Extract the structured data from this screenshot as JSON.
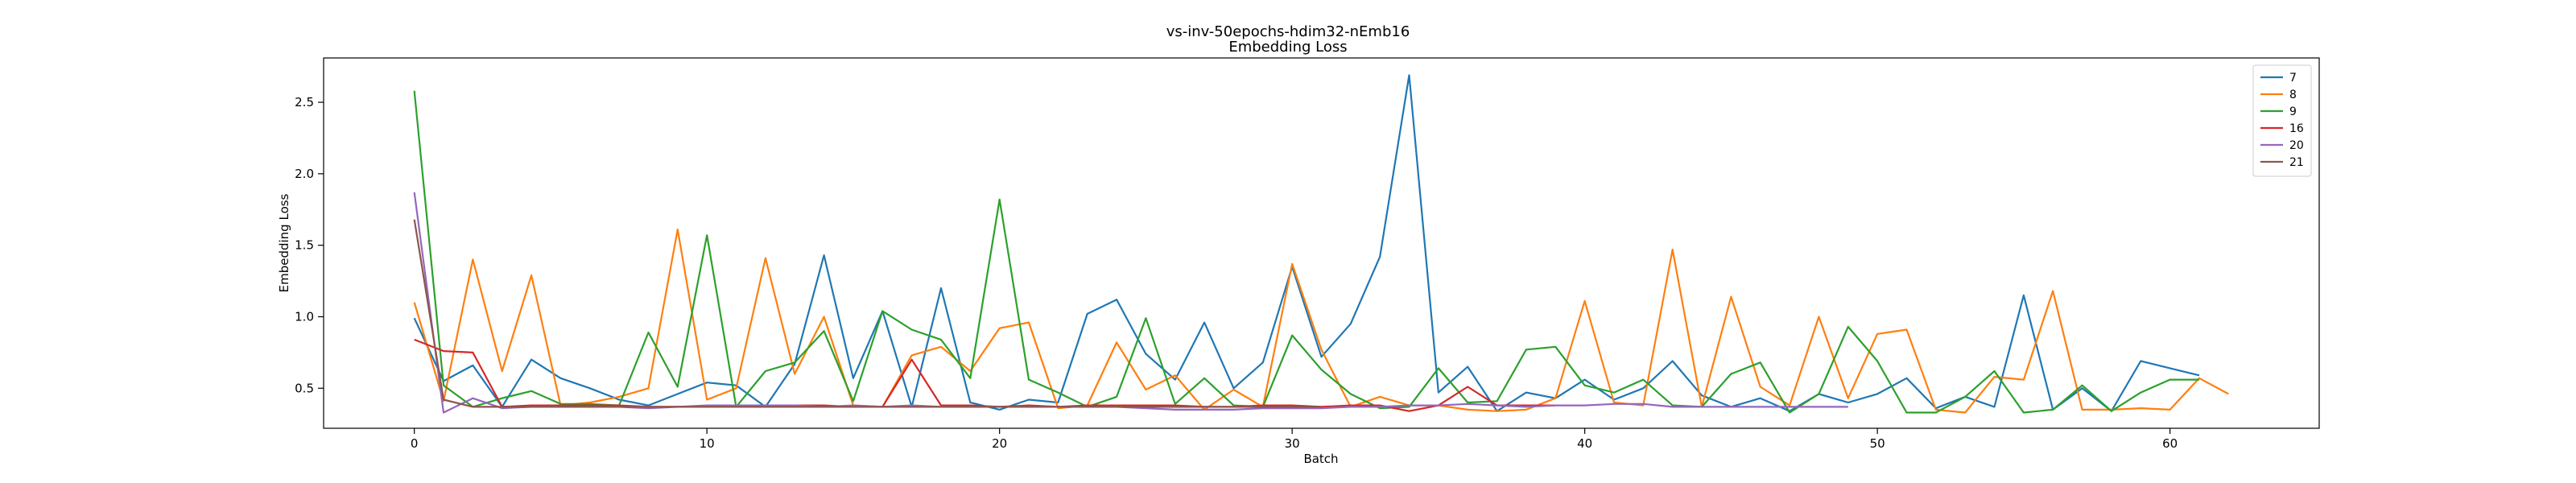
{
  "chart_data": {
    "type": "line",
    "title": "vs-inv-50epochs-hdim32-nEmb16",
    "subtitle": "Embedding Loss",
    "xlabel": "Batch",
    "ylabel": "Embedding Loss",
    "xlim": [
      -3.1,
      65.1
    ],
    "ylim": [
      0.22,
      2.81
    ],
    "xticks": [
      0,
      10,
      20,
      30,
      40,
      50,
      60
    ],
    "yticks": [
      0.5,
      1.0,
      1.5,
      2.0,
      2.5
    ],
    "ytick_labels": [
      "0.5",
      "1.0",
      "1.5",
      "2.0",
      "2.5"
    ],
    "grid": false,
    "legend_position": "top-right",
    "series": [
      {
        "name": "7",
        "color": "#1f77b4",
        "values": [
          0.99,
          0.55,
          0.66,
          0.37,
          0.7,
          0.57,
          0.5,
          0.42,
          0.38,
          0.46,
          0.54,
          0.52,
          0.37,
          0.67,
          1.43,
          0.57,
          1.04,
          0.37,
          1.2,
          0.4,
          0.35,
          0.42,
          0.4,
          1.02,
          1.12,
          0.74,
          0.56,
          0.96,
          0.5,
          0.68,
          1.35,
          0.72,
          0.95,
          1.42,
          2.69,
          0.47,
          0.65,
          0.34,
          0.47,
          0.43,
          0.56,
          0.42,
          0.5,
          0.69,
          0.45,
          0.37,
          0.43,
          0.34,
          0.46,
          0.4,
          0.46,
          0.57,
          0.36,
          0.44,
          0.37,
          1.15,
          0.35,
          0.5,
          0.34,
          0.69,
          0.64,
          0.59
        ]
      },
      {
        "name": "8",
        "color": "#ff7f0e",
        "values": [
          1.1,
          0.41,
          1.4,
          0.62,
          1.29,
          0.38,
          0.4,
          0.44,
          0.5,
          1.61,
          0.42,
          0.5,
          1.41,
          0.6,
          1.0,
          0.38,
          0.37,
          0.73,
          0.79,
          0.62,
          0.92,
          0.96,
          0.36,
          0.38,
          0.82,
          0.49,
          0.59,
          0.35,
          0.49,
          0.37,
          1.37,
          0.77,
          0.37,
          0.44,
          0.38,
          0.38,
          0.35,
          0.34,
          0.35,
          0.43,
          1.11,
          0.4,
          0.38,
          1.47,
          0.37,
          1.14,
          0.51,
          0.38,
          1.0,
          0.43,
          0.88,
          0.91,
          0.35,
          0.33,
          0.58,
          0.56,
          1.18,
          0.35,
          0.35,
          0.36,
          0.35,
          0.57,
          0.46
        ]
      },
      {
        "name": "9",
        "color": "#2ca02c",
        "values": [
          2.58,
          0.52,
          0.37,
          0.43,
          0.48,
          0.39,
          0.39,
          0.38,
          0.89,
          0.51,
          1.57,
          0.37,
          0.62,
          0.68,
          0.9,
          0.41,
          1.04,
          0.91,
          0.84,
          0.57,
          1.82,
          0.56,
          0.47,
          0.37,
          0.44,
          0.99,
          0.39,
          0.57,
          0.38,
          0.37,
          0.87,
          0.63,
          0.46,
          0.36,
          0.37,
          0.64,
          0.4,
          0.41,
          0.77,
          0.79,
          0.52,
          0.47,
          0.56,
          0.38,
          0.37,
          0.6,
          0.68,
          0.33,
          0.46,
          0.93,
          0.69,
          0.33,
          0.33,
          0.44,
          0.62,
          0.33,
          0.35,
          0.52,
          0.34,
          0.47,
          0.56,
          0.56
        ]
      },
      {
        "name": "16",
        "color": "#d62728",
        "values": [
          0.84,
          0.76,
          0.75,
          0.37,
          0.38,
          0.38,
          0.38,
          0.38,
          0.37,
          0.37,
          0.37,
          0.37,
          0.38,
          0.38,
          0.38,
          0.37,
          0.37,
          0.7,
          0.38,
          0.38,
          0.37,
          0.38,
          0.37,
          0.38,
          0.38,
          0.38,
          0.38,
          0.37,
          0.37,
          0.38,
          0.38,
          0.37,
          0.38,
          0.38,
          0.34,
          0.38,
          0.51,
          0.38,
          0.38,
          0.38
        ]
      },
      {
        "name": "20",
        "color": "#9467bd",
        "values": [
          1.87,
          0.33,
          0.43,
          0.36,
          0.37,
          0.37,
          0.37,
          0.37,
          0.36,
          0.37,
          0.38,
          0.38,
          0.38,
          0.38,
          0.37,
          0.38,
          0.37,
          0.38,
          0.37,
          0.37,
          0.37,
          0.37,
          0.37,
          0.37,
          0.37,
          0.36,
          0.35,
          0.35,
          0.35,
          0.36,
          0.36,
          0.36,
          0.37,
          0.37,
          0.38,
          0.38,
          0.39,
          0.38,
          0.37,
          0.38,
          0.38,
          0.39,
          0.39,
          0.37,
          0.37,
          0.37,
          0.37,
          0.37,
          0.37,
          0.37
        ]
      },
      {
        "name": "21",
        "color": "#8c564b",
        "values": [
          1.68,
          0.42,
          0.37,
          0.37,
          0.37,
          0.37,
          0.37,
          0.37,
          0.37,
          0.37,
          0.37,
          0.37,
          0.37,
          0.37,
          0.37,
          0.37,
          0.37,
          0.37,
          0.37,
          0.37,
          0.37,
          0.37,
          0.37,
          0.37,
          0.37,
          0.37,
          0.37,
          0.37,
          0.37,
          0.37,
          0.37,
          0.37
        ]
      }
    ]
  }
}
